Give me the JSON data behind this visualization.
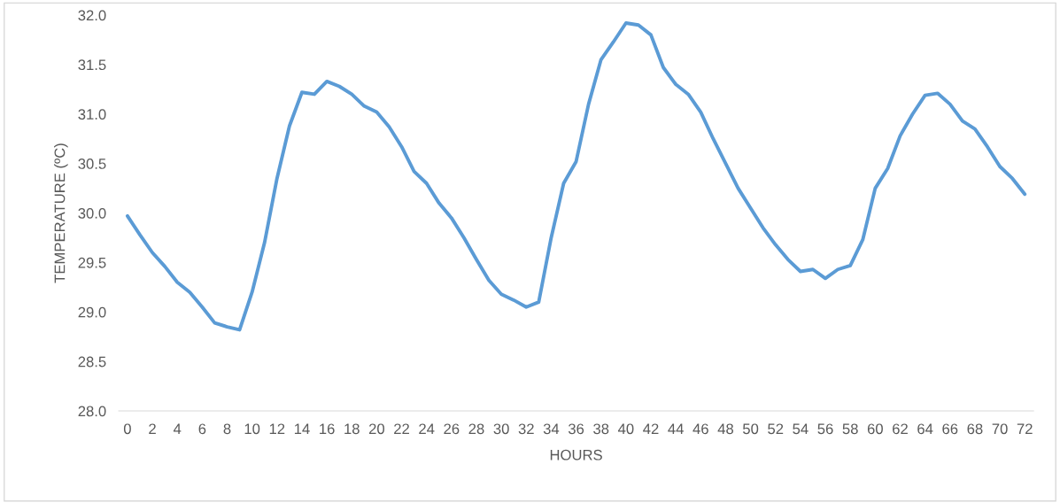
{
  "chart_data": {
    "type": "line",
    "xlabel": "HOURS",
    "ylabel": "TEMPERATURE (ºC)",
    "x": [
      0,
      1,
      2,
      3,
      4,
      5,
      6,
      7,
      8,
      9,
      10,
      11,
      12,
      13,
      14,
      15,
      16,
      17,
      18,
      19,
      20,
      21,
      22,
      23,
      24,
      25,
      26,
      27,
      28,
      29,
      30,
      31,
      32,
      33,
      34,
      35,
      36,
      37,
      38,
      39,
      40,
      41,
      42,
      43,
      44,
      45,
      46,
      47,
      48,
      49,
      50,
      51,
      52,
      53,
      54,
      55,
      56,
      57,
      58,
      59,
      60,
      61,
      62,
      63,
      64,
      65,
      66,
      67,
      68,
      69,
      70,
      71,
      72
    ],
    "series": [
      {
        "color": "#5b9bd5",
        "values": [
          29.97,
          29.78,
          29.6,
          29.46,
          29.3,
          29.2,
          29.05,
          28.89,
          28.85,
          28.82,
          29.2,
          29.7,
          30.35,
          30.88,
          31.22,
          31.2,
          31.33,
          31.28,
          31.2,
          31.08,
          31.02,
          30.87,
          30.67,
          30.42,
          30.3,
          30.1,
          29.95,
          29.75,
          29.53,
          29.32,
          29.18,
          29.12,
          29.05,
          29.1,
          29.75,
          30.3,
          30.52,
          31.1,
          31.55,
          31.73,
          31.92,
          31.9,
          31.8,
          31.47,
          31.3,
          31.2,
          31.02,
          30.75,
          30.5,
          30.25,
          30.05,
          29.85,
          29.68,
          29.53,
          29.41,
          29.43,
          29.34,
          29.43,
          29.47,
          29.73,
          30.25,
          30.45,
          30.78,
          31.0,
          31.19,
          31.21,
          31.1,
          30.93,
          30.85,
          30.67,
          30.47,
          30.35,
          30.19
        ]
      }
    ],
    "xlim": [
      -0.7,
      72.7
    ],
    "xticks": [
      0,
      2,
      4,
      6,
      8,
      10,
      12,
      14,
      16,
      18,
      20,
      22,
      24,
      26,
      28,
      30,
      32,
      34,
      36,
      38,
      40,
      42,
      44,
      46,
      48,
      50,
      52,
      54,
      56,
      58,
      60,
      62,
      64,
      66,
      68,
      70,
      72
    ],
    "ylim": [
      28.0,
      32.0
    ],
    "yticks": [
      {
        "value": 28.0,
        "label": "28.0"
      },
      {
        "value": 28.5,
        "label": "28.5"
      },
      {
        "value": 29.0,
        "label": "29.0"
      },
      {
        "value": 29.5,
        "label": "29.5"
      },
      {
        "value": 30.0,
        "label": "30.0"
      },
      {
        "value": 30.5,
        "label": "30.5"
      },
      {
        "value": 31.0,
        "label": "31.0"
      },
      {
        "value": 31.5,
        "label": "31.5"
      },
      {
        "value": 32.0,
        "label": "32.0"
      }
    ],
    "grid": false,
    "legend": false,
    "marker": "none",
    "line_style": "solid"
  }
}
